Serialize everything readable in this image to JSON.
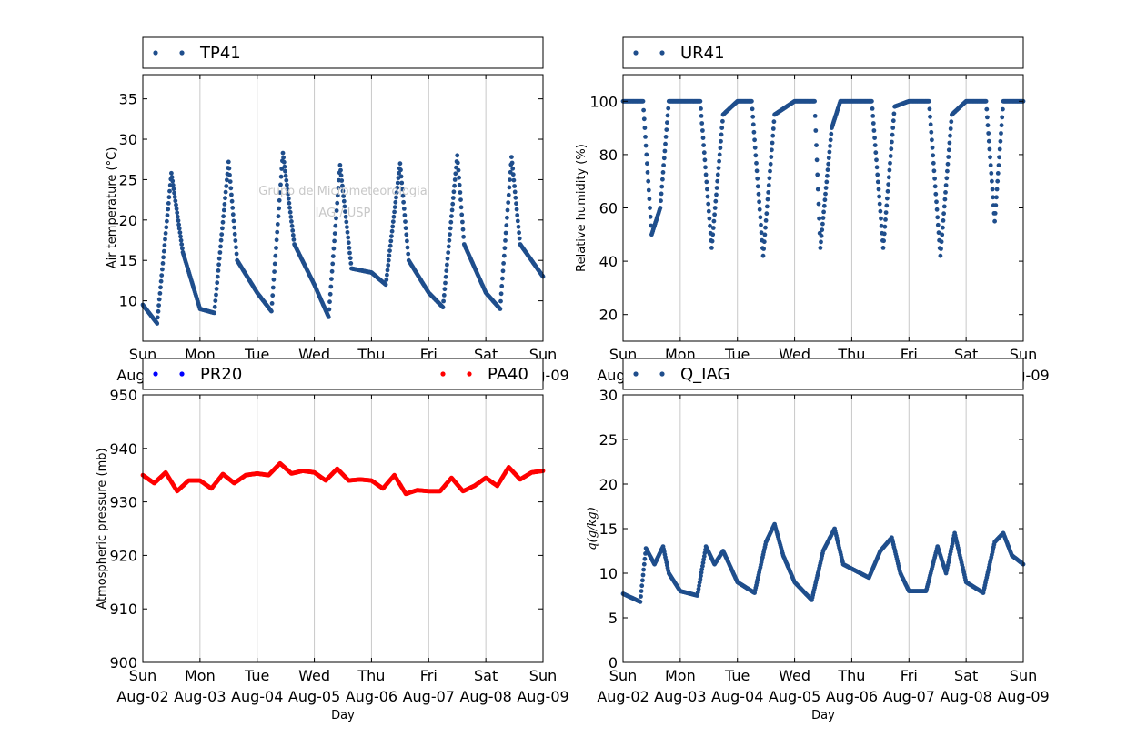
{
  "watermark": {
    "line1": "Grupo de Micrometeorologia",
    "line2": "IAG / USP"
  },
  "x_days": [
    "Sun",
    "Mon",
    "Tue",
    "Wed",
    "Thu",
    "Fri",
    "Sat",
    "Sun"
  ],
  "x_dates": [
    "Aug-02",
    "Aug-03",
    "Aug-04",
    "Aug-05",
    "Aug-06",
    "Aug-07",
    "Aug-08",
    "Aug-09"
  ],
  "colors": {
    "blue": "#1f4e8c",
    "pure_blue": "#0000ff",
    "red": "#ff0000",
    "grid": "#c8c8c8"
  },
  "chart_data": [
    {
      "id": "temp",
      "type": "scatter",
      "xlabel": "Day",
      "ylabel": "Air temperature (°C)",
      "ylim": [
        5,
        38
      ],
      "yticks": [
        10,
        15,
        20,
        25,
        30,
        35
      ],
      "xlim": [
        "Aug-02",
        "Aug-09"
      ],
      "grid": "vertical",
      "legend": "top",
      "series": [
        {
          "name": "TP41",
          "color": "#1f4e8c",
          "x": [
            0,
            0.25,
            0.5,
            0.7,
            1.0,
            1.25,
            1.5,
            1.65,
            2.0,
            2.25,
            2.45,
            2.65,
            3.0,
            3.25,
            3.45,
            3.65,
            4.0,
            4.25,
            4.5,
            4.65,
            5.0,
            5.25,
            5.5,
            5.62,
            6.0,
            6.25,
            6.45,
            6.6,
            7.0
          ],
          "y": [
            9.5,
            7.2,
            25.8,
            16,
            9,
            8.5,
            27.2,
            15,
            11,
            8.7,
            28.3,
            17,
            12,
            8,
            26.8,
            14,
            13.5,
            12,
            27,
            15,
            11,
            9.2,
            28,
            17,
            11,
            9,
            27.8,
            17,
            13
          ]
        }
      ]
    },
    {
      "id": "rh",
      "type": "scatter",
      "xlabel": "Day",
      "ylabel": "Relative humidity (%)",
      "ylim": [
        10,
        110
      ],
      "yticks": [
        20,
        40,
        60,
        80,
        100
      ],
      "xlim": [
        "Aug-02",
        "Aug-09"
      ],
      "grid": "vertical",
      "legend": "top",
      "series": [
        {
          "name": "UR41",
          "color": "#1f4e8c",
          "x": [
            0,
            0.35,
            0.5,
            0.65,
            0.8,
            1.0,
            1.35,
            1.55,
            1.75,
            2.0,
            2.25,
            2.45,
            2.65,
            3.0,
            3.35,
            3.45,
            3.65,
            3.8,
            4.0,
            4.35,
            4.55,
            4.75,
            5.0,
            5.35,
            5.55,
            5.75,
            6.0,
            6.35,
            6.5,
            6.65,
            7.0
          ],
          "y": [
            100,
            100,
            50,
            60,
            100,
            100,
            100,
            45,
            95,
            100,
            100,
            42,
            95,
            100,
            100,
            45,
            90,
            100,
            100,
            100,
            45,
            98,
            100,
            100,
            42,
            95,
            100,
            100,
            55,
            100,
            100
          ]
        }
      ]
    },
    {
      "id": "pressure",
      "type": "scatter",
      "xlabel": "Day",
      "ylabel": "Atmospheric pressure (mb)",
      "ylim": [
        900,
        950
      ],
      "yticks": [
        900,
        910,
        920,
        930,
        940,
        950
      ],
      "xlim": [
        "Aug-02",
        "Aug-09"
      ],
      "grid": "vertical",
      "legend": "top",
      "series": [
        {
          "name": "PR20",
          "color": "#0000ff",
          "x": [],
          "y": []
        },
        {
          "name": "PA40",
          "color": "#ff0000",
          "x": [
            0,
            0.2,
            0.4,
            0.6,
            0.8,
            1.0,
            1.2,
            1.4,
            1.6,
            1.8,
            2.0,
            2.2,
            2.4,
            2.6,
            2.8,
            3.0,
            3.2,
            3.4,
            3.6,
            3.8,
            4.0,
            4.2,
            4.4,
            4.6,
            4.8,
            5.0,
            5.2,
            5.4,
            5.6,
            5.8,
            6.0,
            6.2,
            6.4,
            6.6,
            6.8,
            7.0
          ],
          "y": [
            935,
            933.5,
            935.5,
            932,
            934,
            934,
            932.5,
            935.2,
            933.5,
            935,
            935.3,
            935,
            937.2,
            935.3,
            935.8,
            935.5,
            934,
            936.2,
            934,
            934.2,
            934,
            932.5,
            935,
            931.5,
            932.2,
            932,
            932,
            934.5,
            932,
            933,
            934.5,
            933,
            936.5,
            934.2,
            935.5,
            935.8
          ]
        }
      ]
    },
    {
      "id": "q",
      "type": "scatter",
      "xlabel": "Day",
      "ylabel": "q(g/kg)",
      "ylim": [
        0,
        30
      ],
      "yticks": [
        0,
        5,
        10,
        15,
        20,
        25,
        30
      ],
      "xlim": [
        "Aug-02",
        "Aug-09"
      ],
      "grid": "vertical",
      "legend": "top",
      "series": [
        {
          "name": "Q_IAG",
          "color": "#1f4e8c",
          "x": [
            0,
            0.3,
            0.4,
            0.55,
            0.7,
            0.8,
            1.0,
            1.3,
            1.45,
            1.6,
            1.75,
            2.0,
            2.3,
            2.5,
            2.65,
            2.8,
            3.0,
            3.3,
            3.5,
            3.7,
            3.85,
            4.0,
            4.3,
            4.5,
            4.7,
            4.85,
            5.0,
            5.3,
            5.5,
            5.65,
            5.8,
            6.0,
            6.3,
            6.5,
            6.65,
            6.8,
            7.0
          ],
          "y": [
            7.7,
            6.8,
            12.8,
            11,
            13,
            10,
            8,
            7.5,
            13,
            11,
            12.5,
            9,
            7.8,
            13.5,
            15.5,
            12,
            9,
            7,
            12.5,
            15,
            11,
            10.5,
            9.5,
            12.5,
            14,
            10,
            8,
            8,
            13,
            10,
            14.5,
            9,
            7.8,
            13.5,
            14.5,
            12,
            11
          ]
        }
      ]
    }
  ]
}
